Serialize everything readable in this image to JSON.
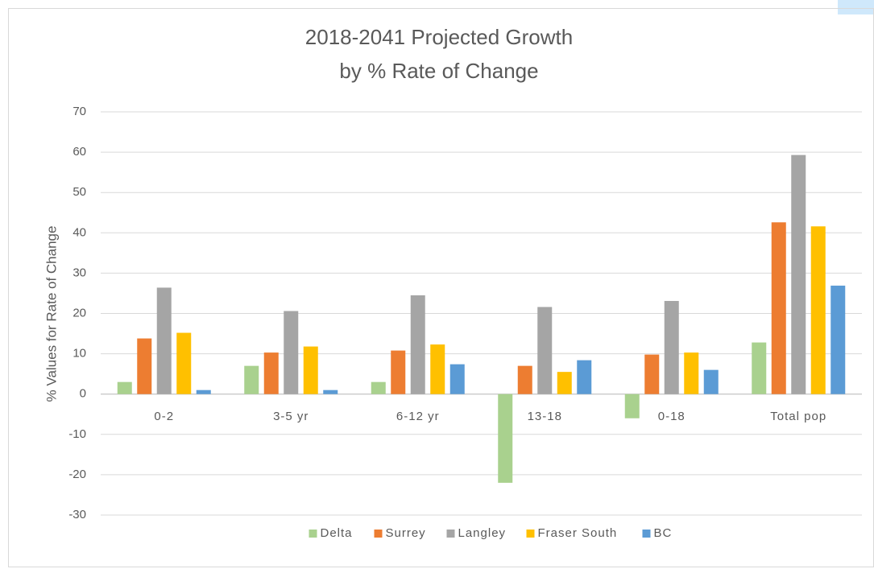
{
  "chart_data": {
    "type": "bar",
    "title": [
      "2018-2041 Projected Growth",
      "by % Rate of Change"
    ],
    "y_label": "% Values for Rate of Change",
    "categories": [
      "0-2",
      "3-5 yr",
      "6-12 yr",
      "13-18",
      "0-18",
      "Total pop"
    ],
    "series": [
      {
        "name": "Delta",
        "color": "#a9d18e",
        "values": [
          3,
          7,
          3,
          -22,
          -6,
          12.8
        ]
      },
      {
        "name": "Surrey",
        "color": "#ed7d31",
        "values": [
          13.8,
          10.3,
          10.8,
          7,
          9.8,
          42.6
        ]
      },
      {
        "name": "Langley",
        "color": "#a5a5a5",
        "values": [
          26.4,
          20.6,
          24.5,
          21.6,
          23.1,
          59.3
        ]
      },
      {
        "name": "Fraser South",
        "color": "#ffc000",
        "values": [
          15.2,
          11.8,
          12.3,
          5.5,
          10.3,
          41.6
        ]
      },
      {
        "name": "BC",
        "color": "#5b9bd5",
        "values": [
          1,
          1,
          7.4,
          8.4,
          6,
          26.9
        ]
      }
    ],
    "ylim": [
      -30,
      70
    ],
    "yticks": [
      -30,
      -20,
      -10,
      0,
      10,
      20,
      30,
      40,
      50,
      60,
      70
    ],
    "grid": true,
    "legend": "bottom"
  }
}
